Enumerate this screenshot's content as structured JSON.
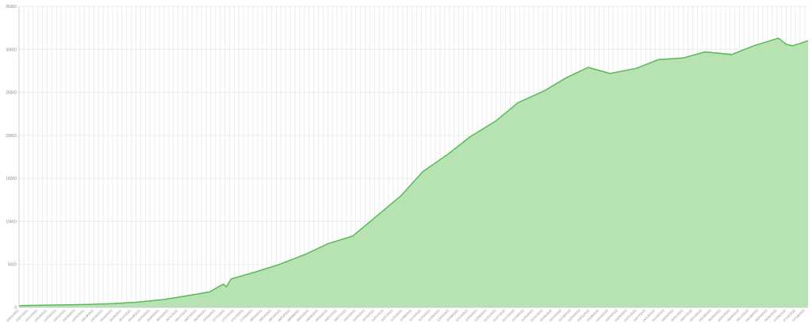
{
  "chart_data": {
    "type": "area",
    "title": "",
    "xlabel": "",
    "ylabel": "",
    "ylim": [
      0,
      35000
    ],
    "yticks": [
      0,
      5000,
      10000,
      15000,
      20000,
      25000,
      30000,
      35000
    ],
    "grid": true,
    "legend": "none",
    "colors": {
      "fill": "#b7e2b1",
      "line": "#5cb85c",
      "grid": "#ececec",
      "axis": "#cccccc",
      "tick_text": "#888888"
    },
    "x": [
      "03/01/2021",
      "03/15/2021",
      "04/01/2021",
      "04/15/2021",
      "05/01/2021",
      "05/15/2021",
      "06/01/2021",
      "06/15/2021",
      "07/01/2021",
      "07/10/2021",
      "07/12/2021",
      "07/15/2021",
      "08/01/2021",
      "08/15/2021",
      "09/01/2021",
      "09/15/2021",
      "10/01/2021",
      "10/15/2021",
      "11/01/2021",
      "11/15/2021",
      "12/01/2021",
      "12/15/2021",
      "01/01/2022",
      "01/15/2022",
      "02/01/2022",
      "02/15/2022",
      "03/01/2022",
      "03/15/2022",
      "04/01/2022",
      "04/15/2022",
      "05/01/2022",
      "05/15/2022",
      "06/01/2022",
      "06/15/2022",
      "07/01/2022",
      "07/06/2022",
      "07/10/2022",
      "07/15/2022",
      "07/20/2022"
    ],
    "series": [
      {
        "values": [
          200,
          250,
          300,
          350,
          450,
          600,
          900,
          1300,
          1800,
          2700,
          2400,
          3300,
          4200,
          5000,
          6200,
          7400,
          8300,
          10400,
          13000,
          15800,
          17800,
          19800,
          21700,
          23800,
          25200,
          26700,
          27900,
          27200,
          27800,
          28800,
          29000,
          29700,
          29400,
          30400,
          31300,
          30600,
          30400,
          30700,
          31000
        ]
      }
    ]
  }
}
